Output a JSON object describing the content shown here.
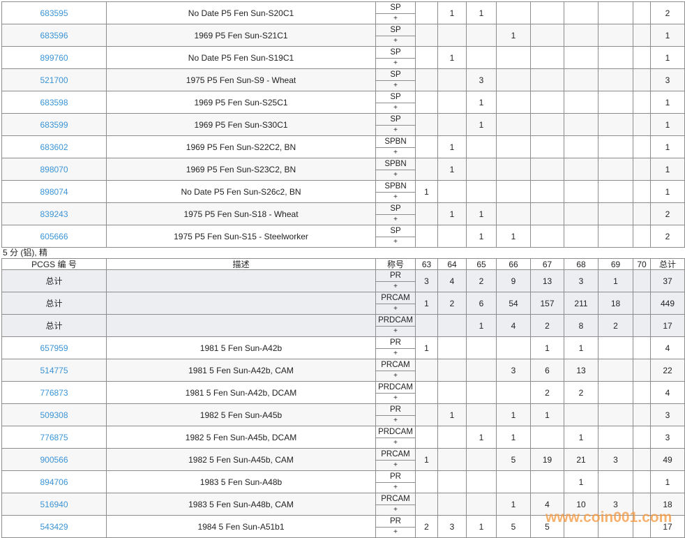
{
  "upper_rows": [
    {
      "id": "683595",
      "description": "No Date P5 Fen Sun-S20C1",
      "grade": "SP",
      "counts": [
        null,
        1,
        1,
        null,
        null,
        null,
        null,
        null
      ],
      "total": 2
    },
    {
      "id": "683596",
      "description": "1969 P5 Fen Sun-S21C1",
      "grade": "SP",
      "counts": [
        null,
        null,
        null,
        1,
        null,
        null,
        null,
        null
      ],
      "total": 1
    },
    {
      "id": "899760",
      "description": "No Date P5 Fen Sun-S19C1",
      "grade": "SP",
      "counts": [
        null,
        1,
        null,
        null,
        null,
        null,
        null,
        null
      ],
      "total": 1
    },
    {
      "id": "521700",
      "description": "1975 P5 Fen Sun-S9 - Wheat",
      "grade": "SP",
      "counts": [
        null,
        null,
        3,
        null,
        null,
        null,
        null,
        null
      ],
      "total": 3
    },
    {
      "id": "683598",
      "description": "1969 P5 Fen Sun-S25C1",
      "grade": "SP",
      "counts": [
        null,
        null,
        1,
        null,
        null,
        null,
        null,
        null
      ],
      "total": 1
    },
    {
      "id": "683599",
      "description": "1969 P5 Fen Sun-S30C1",
      "grade": "SP",
      "counts": [
        null,
        null,
        1,
        null,
        null,
        null,
        null,
        null
      ],
      "total": 1
    },
    {
      "id": "683602",
      "description": "1969 P5 Fen Sun-S22C2, BN",
      "grade": "SPBN",
      "counts": [
        null,
        1,
        null,
        null,
        null,
        null,
        null,
        null
      ],
      "total": 1
    },
    {
      "id": "898070",
      "description": "1969 P5 Fen Sun-S23C2, BN",
      "grade": "SPBN",
      "counts": [
        null,
        1,
        null,
        null,
        null,
        null,
        null,
        null
      ],
      "total": 1
    },
    {
      "id": "898074",
      "description": "No Date P5 Fen Sun-S26c2, BN",
      "grade": "SPBN",
      "counts": [
        1,
        null,
        null,
        null,
        null,
        null,
        null,
        null
      ],
      "total": 1
    },
    {
      "id": "839243",
      "description": "1975 P5 Fen Sun-S18 - Wheat",
      "grade": "SP",
      "counts": [
        null,
        1,
        1,
        null,
        null,
        null,
        null,
        null
      ],
      "total": 2
    },
    {
      "id": "605666",
      "description": "1975 P5 Fen Sun-S15 - Steelworker",
      "grade": "SP",
      "counts": [
        null,
        null,
        1,
        1,
        null,
        null,
        null,
        null
      ],
      "total": 2
    }
  ],
  "plus": "+",
  "section_title": "5 分 (铝), 精",
  "header": [
    "PCGS 编 号",
    "描述",
    "称号",
    "63",
    "64",
    "65",
    "66",
    "67",
    "68",
    "69",
    "70",
    "总计"
  ],
  "summary_rows": [
    {
      "label": "总计",
      "grade": "PR",
      "counts": [
        3,
        4,
        2,
        9,
        13,
        3,
        1,
        null
      ],
      "total": 37
    },
    {
      "label": "总计",
      "grade": "PRCAM",
      "counts": [
        1,
        2,
        6,
        54,
        157,
        211,
        18,
        null
      ],
      "total": 449
    },
    {
      "label": "总计",
      "grade": "PRDCAM",
      "counts": [
        null,
        null,
        1,
        4,
        2,
        8,
        2,
        null
      ],
      "total": 17
    }
  ],
  "lower_rows": [
    {
      "id": "657959",
      "description": "1981 5 Fen Sun-A42b",
      "grade": "PR",
      "counts": [
        1,
        null,
        null,
        null,
        1,
        1,
        null,
        null
      ],
      "total": 4
    },
    {
      "id": "514775",
      "description": "1981 5 Fen Sun-A42b, CAM",
      "grade": "PRCAM",
      "counts": [
        null,
        null,
        null,
        3,
        6,
        13,
        null,
        null
      ],
      "total": 22
    },
    {
      "id": "776873",
      "description": "1981 5 Fen Sun-A42b, DCAM",
      "grade": "PRDCAM",
      "counts": [
        null,
        null,
        null,
        null,
        2,
        2,
        null,
        null
      ],
      "total": 4
    },
    {
      "id": "509308",
      "description": "1982 5 Fen Sun-A45b",
      "grade": "PR",
      "counts": [
        null,
        1,
        null,
        1,
        1,
        null,
        null,
        null
      ],
      "total": 3
    },
    {
      "id": "776875",
      "description": "1982 5 Fen Sun-A45b, DCAM",
      "grade": "PRDCAM",
      "counts": [
        null,
        null,
        1,
        1,
        null,
        1,
        null,
        null
      ],
      "total": 3
    },
    {
      "id": "900566",
      "description": "1982 5 Fen Sun-A45b, CAM",
      "grade": "PRCAM",
      "counts": [
        1,
        null,
        null,
        5,
        19,
        21,
        3,
        null
      ],
      "total": 49
    },
    {
      "id": "894706",
      "description": "1983 5 Fen Sun-A48b",
      "grade": "PR",
      "counts": [
        null,
        null,
        null,
        null,
        null,
        1,
        null,
        null
      ],
      "total": 1
    },
    {
      "id": "516940",
      "description": "1983 5 Fen Sun-A48b, CAM",
      "grade": "PRCAM",
      "counts": [
        null,
        null,
        null,
        1,
        4,
        10,
        3,
        null
      ],
      "total": 18
    },
    {
      "id": "543429",
      "description": "1984 5 Fen Sun-A51b1",
      "grade": "PR",
      "counts": [
        2,
        3,
        1,
        5,
        5,
        null,
        null,
        null
      ],
      "total": 17
    }
  ],
  "watermark": "www.coin001.com"
}
